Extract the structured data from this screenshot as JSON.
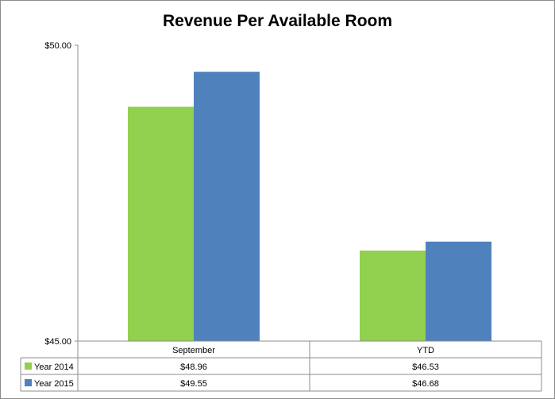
{
  "chart_data": {
    "type": "bar",
    "title": "Revenue Per Available Room",
    "categories": [
      "September",
      "YTD"
    ],
    "series": [
      {
        "name": "Year 2014",
        "values": [
          48.96,
          46.53
        ],
        "color": "#92d050",
        "labels": [
          "$48.96",
          "$46.53"
        ]
      },
      {
        "name": "Year 2015",
        "values": [
          49.55,
          46.68
        ],
        "color": "#4f81bd",
        "labels": [
          "$49.55",
          "$46.68"
        ]
      }
    ],
    "ylim": [
      45,
      50
    ],
    "yticks": [
      {
        "value": 45,
        "label": "$45.00"
      },
      {
        "value": 50,
        "label": "$50.00"
      }
    ],
    "grid": false,
    "legend": "data-table"
  }
}
